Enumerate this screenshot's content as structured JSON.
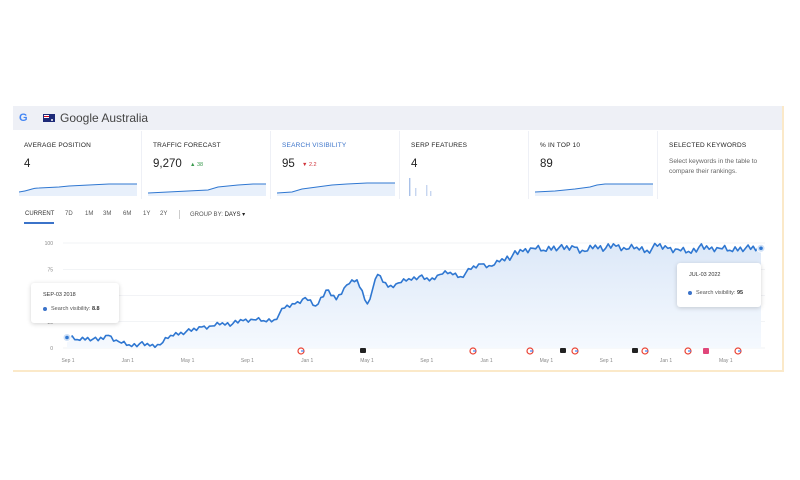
{
  "header": {
    "engine_logo": "G",
    "country_flag": "australia-flag-icon",
    "engine_name": "Google Australia"
  },
  "cards": [
    {
      "label": "AVERAGE POSITION",
      "value": "4",
      "delta": ""
    },
    {
      "label": "TRAFFIC FORECAST",
      "value": "9,270",
      "delta": "▲ 38",
      "delta_dir": "up"
    },
    {
      "label": "SEARCH VISIBILITY",
      "value": "95",
      "delta": "▼ 2.2",
      "delta_dir": "down"
    },
    {
      "label": "SERP FEATURES",
      "value": "4",
      "delta": ""
    },
    {
      "label": "% IN TOP 10",
      "value": "89",
      "delta": ""
    },
    {
      "label": "SELECTED KEYWORDS",
      "text": "Select keywords in the table to compare their rankings."
    }
  ],
  "toolbar": {
    "ranges": [
      "CURRENT",
      "7D",
      "1M",
      "3M",
      "6M",
      "1Y",
      "2Y"
    ],
    "active_range": "CURRENT",
    "group_by_label": "GROUP BY:",
    "group_by_value": "DAYS ▾"
  },
  "colors": {
    "accent": "#3b73c9",
    "line": "#2f77d1",
    "area": "#e8f0fb",
    "header_bg": "#eef0f6"
  },
  "chart_data": {
    "type": "area",
    "ylim": [
      0,
      100
    ],
    "yticks": [
      "100",
      "75",
      "50",
      "25",
      "0"
    ],
    "xticks": [
      "Sep 1",
      "Jan 1",
      "May 1",
      "Sep 1",
      "Jan 1",
      "May 1",
      "Sep 1",
      "Jan 1",
      "May 1",
      "Sep 1",
      "Jan 1",
      "May 1"
    ],
    "series": [
      {
        "values": [
          10,
          8,
          10,
          7,
          12,
          6,
          3,
          4,
          2,
          3,
          12,
          15,
          16,
          20,
          21,
          24,
          23,
          26,
          27,
          26,
          27,
          38,
          42,
          48,
          40,
          55,
          46,
          60,
          65,
          42,
          70,
          58,
          62,
          66,
          68,
          64,
          70,
          72,
          68,
          75,
          80,
          78,
          85,
          88,
          92,
          95,
          93,
          97,
          94,
          96,
          92,
          98,
          95,
          97,
          94,
          96,
          93,
          97,
          95,
          94,
          92,
          96,
          94,
          95,
          93,
          96,
          94,
          95
        ]
      }
    ],
    "annotation_icons": [
      "google-icon",
      "google-icon",
      "comment-icon",
      "google-icon",
      "google-icon",
      "google-icon",
      "google-icon",
      "comment-icon",
      "google-icon",
      "comment-icon",
      "google-icon",
      "google-icon",
      "note-icon",
      "google-icon"
    ]
  },
  "tooltips": {
    "left": {
      "date": "SEP-03 2018",
      "metric": "Search visibility:",
      "value": "8.8"
    },
    "right": {
      "date": "JUL-03 2022",
      "metric": "Search visibility:",
      "value": "95"
    }
  }
}
